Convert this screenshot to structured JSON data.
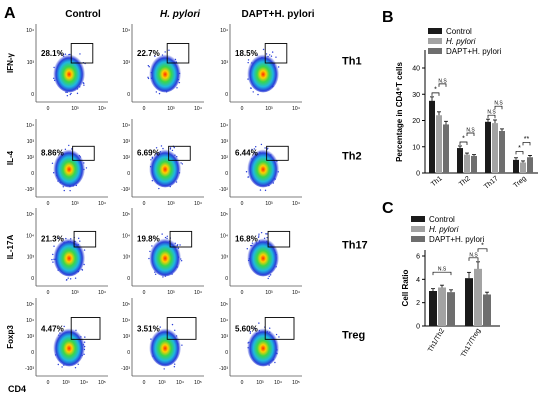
{
  "panels": {
    "A": "A",
    "B": "B",
    "C": "C"
  },
  "flow": {
    "columns": [
      "Control",
      "H. pylori",
      "DAPT+H. pylori"
    ],
    "rows": [
      {
        "label": "Th1",
        "ylabel": "IFN-γ",
        "pcts": [
          "28.1%",
          "22.7%",
          "18.5%"
        ],
        "yticks": [
          "10⁴",
          "10³",
          "0"
        ],
        "ytick_count": 3
      },
      {
        "label": "Th2",
        "ylabel": "IL-4",
        "pcts": [
          "8.86%",
          "6.69%",
          "6.44%"
        ],
        "yticks": [
          "10⁴",
          "10³",
          "10²",
          "0",
          "-10²"
        ],
        "ytick_count": 5
      },
      {
        "label": "Th17",
        "ylabel": "IL-17A",
        "pcts": [
          "21.3%",
          "19.8%",
          "16.8%"
        ],
        "yticks": [
          "10⁵",
          "10⁴",
          "10³",
          "0"
        ],
        "ytick_count": 4
      },
      {
        "label": "Treg",
        "ylabel": "Foxp3",
        "pcts": [
          "4.47%",
          "3.51%",
          "5.60%"
        ],
        "yticks": [
          "10⁵",
          "10⁴",
          "10³",
          "0",
          "-10³"
        ],
        "ytick_count": 5
      }
    ],
    "xticks": [
      "0",
      "10³",
      "10⁴"
    ],
    "xticks_last_row": [
      "0",
      "10³",
      "10⁴",
      "10⁵"
    ],
    "xlabel": "CD4"
  },
  "colors": {
    "control": "#1a1a1a",
    "hpylori": "#a3a3a3",
    "dapt": "#6e6e6e"
  },
  "chart_data": [
    {
      "type": "bar",
      "panel": "B",
      "categories": [
        "Th1",
        "Th2",
        "Th17",
        "Treg"
      ],
      "series": [
        {
          "name": "Control",
          "values": [
            27.5,
            9.5,
            19.5,
            5.0
          ],
          "errors": [
            1.5,
            0.8,
            1.0,
            0.8
          ]
        },
        {
          "name": "H. pylori",
          "values": [
            22.0,
            7.0,
            19.0,
            4.0
          ],
          "errors": [
            1.3,
            0.6,
            1.2,
            0.6
          ]
        },
        {
          "name": "DAPT+H. pylori",
          "values": [
            18.5,
            6.5,
            16.0,
            6.0
          ],
          "errors": [
            1.2,
            0.5,
            0.8,
            0.7
          ]
        }
      ],
      "ylabel": "Percentage in CD4⁺T cells",
      "ylim": [
        0,
        40
      ],
      "yticks": [
        "0",
        "10",
        "20",
        "30",
        "40"
      ],
      "significance": [
        {
          "text": "N.S",
          "cat": 0,
          "from": 1,
          "to": 2,
          "level": 1
        },
        {
          "text": "*",
          "cat": 0,
          "from": 0,
          "to": 1,
          "level": 0
        },
        {
          "text": "N.S",
          "cat": 1,
          "from": 1,
          "to": 2,
          "level": 1
        },
        {
          "text": "*",
          "cat": 1,
          "from": 0,
          "to": 1,
          "level": 0
        },
        {
          "text": "N.S",
          "cat": 2,
          "from": 1,
          "to": 2,
          "level": 1
        },
        {
          "text": "N.S",
          "cat": 2,
          "from": 0,
          "to": 1,
          "level": 0
        },
        {
          "text": "*",
          "cat": 3,
          "from": 0,
          "to": 1,
          "level": 0
        },
        {
          "text": "**",
          "cat": 3,
          "from": 1,
          "to": 2,
          "level": 1
        }
      ],
      "legend": "top-right"
    },
    {
      "type": "bar",
      "panel": "C",
      "categories": [
        "Th1/Th2",
        "Th17/Treg"
      ],
      "series": [
        {
          "name": "Control",
          "values": [
            3.0,
            4.1
          ],
          "errors": [
            0.2,
            0.5
          ]
        },
        {
          "name": "H. pylori",
          "values": [
            3.3,
            4.9
          ],
          "errors": [
            0.2,
            0.6
          ]
        },
        {
          "name": "DAPT+H. pylori",
          "values": [
            2.9,
            2.7
          ],
          "errors": [
            0.2,
            0.2
          ]
        }
      ],
      "ylabel": "Cell Ratio",
      "ylim": [
        0,
        6
      ],
      "yticks": [
        "0",
        "2",
        "4",
        "6"
      ],
      "significance": [
        {
          "text": "N.S",
          "cat": 0,
          "from": 0,
          "to": 2,
          "level": 1
        },
        {
          "text": "N.S",
          "cat": 1,
          "from": 0,
          "to": 1,
          "level": 0
        },
        {
          "text": "*",
          "cat": 1,
          "from": 1,
          "to": 2,
          "level": 1
        }
      ],
      "legend": "top-right"
    }
  ]
}
